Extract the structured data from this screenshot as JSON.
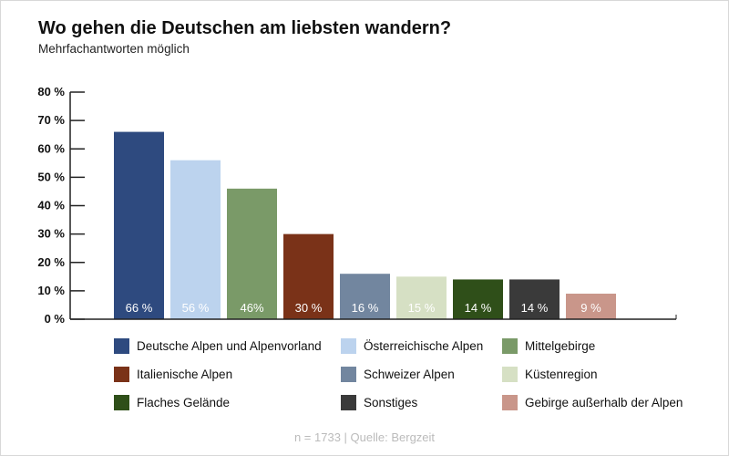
{
  "title": "Wo gehen die Deutschen am liebsten wandern?",
  "subtitle": "Mehrfachantworten möglich",
  "source": "n = 1733 | Quelle: Bergzeit",
  "chart_data": {
    "type": "bar",
    "title": "Wo gehen die Deutschen am liebsten wandern?",
    "subtitle": "Mehrfachantworten möglich",
    "ylim": [
      0,
      80
    ],
    "yticks": [
      0,
      10,
      20,
      30,
      40,
      50,
      60,
      70,
      80
    ],
    "ytick_labels": [
      "0 %",
      "10 %",
      "20 %",
      "30 %",
      "40 %",
      "50 %",
      "60 %",
      "70 %",
      "80 %"
    ],
    "categories": [
      "Deutsche Alpen und Alpenvorland",
      "Österreichische Alpen",
      "Mittelgebirge",
      "Italienische Alpen",
      "Schweizer Alpen",
      "Küstenregion",
      "Flaches Gelände",
      "Sonstiges",
      "Gebirge außerhalb der Alpen"
    ],
    "values": [
      66,
      56,
      46,
      30,
      16,
      15,
      14,
      14,
      9
    ],
    "data_labels": [
      "66 %",
      "56 %",
      "46%",
      "30 %",
      "16 %",
      "15 %",
      "14 %",
      "14 %",
      "9 %"
    ],
    "colors": [
      "#2e4a7f",
      "#bcd3ee",
      "#7a9a68",
      "#7a3218",
      "#72869f",
      "#d6e0c4",
      "#2f4f19",
      "#3a3a3a",
      "#c9968a"
    ],
    "legend_placement": "bottom",
    "grid": false
  }
}
